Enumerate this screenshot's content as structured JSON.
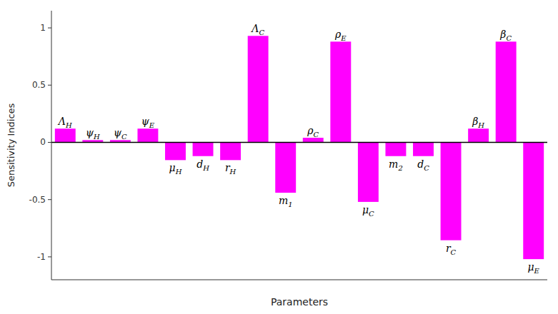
{
  "chart_data": {
    "type": "bar",
    "xlabel": "Parameters",
    "ylabel": "Sensitivity Indices",
    "categories": [
      "ΛH",
      "ψH",
      "ψC",
      "ψE",
      "μH",
      "dH",
      "rH",
      "ΛC",
      "m1",
      "ρC",
      "ρE",
      "μC",
      "m2",
      "dC",
      "rC",
      "βH",
      "βC",
      "μE"
    ],
    "values": [
      0.12,
      0.02,
      0.02,
      0.12,
      -0.155,
      -0.12,
      -0.155,
      0.93,
      -0.44,
      0.04,
      0.88,
      -0.52,
      -0.12,
      -0.12,
      -0.855,
      0.12,
      0.88,
      -1.02
    ],
    "color": "#FF00FF",
    "ylim": [
      -1.2,
      1.15
    ],
    "yticks": [
      -1,
      -0.5,
      0,
      0.5,
      1
    ],
    "grid": false,
    "tick_labels": "y"
  }
}
